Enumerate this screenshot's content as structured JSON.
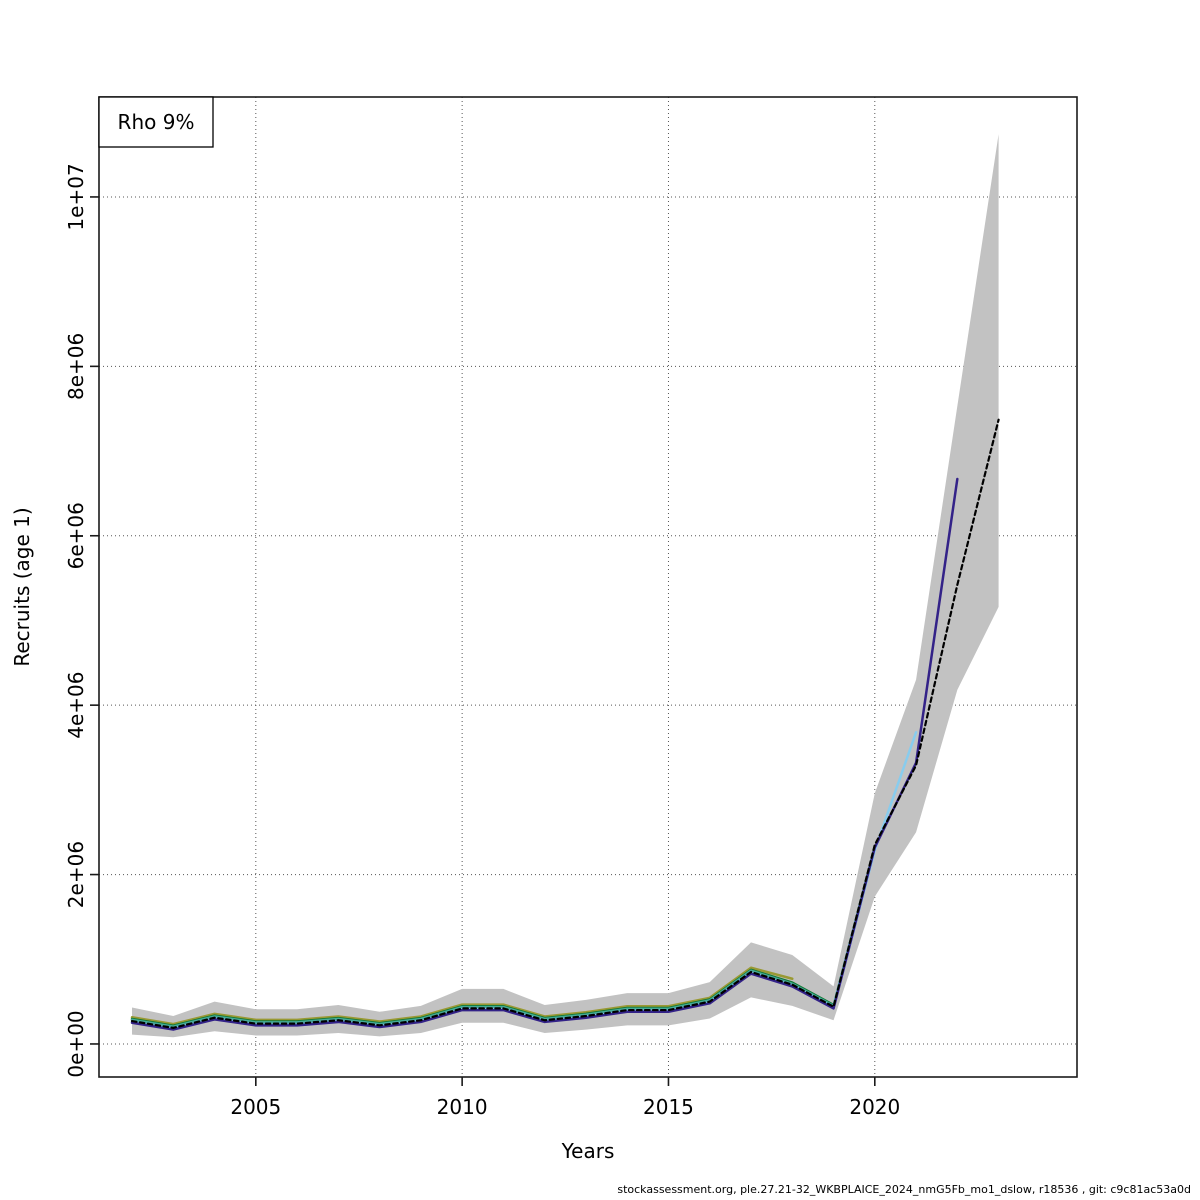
{
  "footer": {
    "text": "stockassessment.org, ple.27.21-32_WKBPLAICE_2024_nmG5Fb_mo1_dslow, r18536 , git: c9c81ac53a0d"
  },
  "chart_data": {
    "type": "line",
    "title": "",
    "xlabel": "Years",
    "ylabel": "Recruits (age 1)",
    "legend": {
      "label": "Rho 9%",
      "position": "topleft"
    },
    "grid": true,
    "xlim": [
      2001.2,
      2024.9
    ],
    "ylim": [
      -390000,
      11180000
    ],
    "x_ticks": {
      "values": [
        2005,
        2010,
        2015,
        2020
      ],
      "labels": [
        "2005",
        "2010",
        "2015",
        "2020"
      ]
    },
    "y_ticks": {
      "values": [
        0,
        2000000,
        4000000,
        6000000,
        8000000,
        10000000
      ],
      "labels": [
        "0e+00",
        "2e+06",
        "4e+06",
        "6e+06",
        "8e+06",
        "1e+07"
      ]
    },
    "years": [
      2002,
      2003,
      2004,
      2005,
      2006,
      2007,
      2008,
      2009,
      2010,
      2011,
      2012,
      2013,
      2014,
      2015,
      2016,
      2017,
      2018,
      2019,
      2020,
      2021,
      2022,
      2023
    ],
    "band": {
      "name": "base-run-confidence-band",
      "color": "#c2c2c2",
      "lower": [
        110000,
        80000,
        150000,
        100000,
        100000,
        130000,
        90000,
        130000,
        250000,
        250000,
        130000,
        170000,
        220000,
        220000,
        300000,
        550000,
        450000,
        280000,
        1740000,
        2500000,
        4180000,
        5160000
      ],
      "upper": [
        430000,
        330000,
        500000,
        410000,
        410000,
        460000,
        380000,
        450000,
        650000,
        650000,
        460000,
        520000,
        600000,
        600000,
        730000,
        1200000,
        1050000,
        680000,
        2960000,
        4300000,
        7530000,
        10740000
      ]
    },
    "series": [
      {
        "name": "retro-peel-2018",
        "color": "#999933",
        "dashed": false,
        "values": [
          315000,
          235000,
          355000,
          285000,
          285000,
          325000,
          265000,
          325000,
          465000,
          465000,
          325000,
          375000,
          445000,
          445000,
          545000,
          900000,
          770000
        ]
      },
      {
        "name": "retro-peel-2019",
        "color": "#117733",
        "dashed": false,
        "values": [
          295000,
          215000,
          335000,
          265000,
          265000,
          305000,
          245000,
          305000,
          445000,
          445000,
          305000,
          355000,
          425000,
          425000,
          525000,
          875000,
          725000,
          460000
        ]
      },
      {
        "name": "retro-peel-2020",
        "color": "#44AA99",
        "dashed": false,
        "values": [
          285000,
          205000,
          325000,
          255000,
          255000,
          295000,
          235000,
          295000,
          435000,
          435000,
          295000,
          345000,
          415000,
          415000,
          515000,
          865000,
          710000,
          450000,
          2330000
        ]
      },
      {
        "name": "retro-peel-2021",
        "color": "#88CCEE",
        "dashed": false,
        "values": [
          260000,
          180000,
          300000,
          230000,
          230000,
          270000,
          210000,
          270000,
          410000,
          410000,
          270000,
          320000,
          390000,
          390000,
          490000,
          840000,
          690000,
          430000,
          2290000,
          3680000
        ]
      },
      {
        "name": "retro-peel-2022",
        "color": "#332288",
        "dashed": false,
        "values": [
          250000,
          170000,
          290000,
          220000,
          220000,
          260000,
          200000,
          260000,
          400000,
          400000,
          260000,
          310000,
          380000,
          380000,
          480000,
          830000,
          680000,
          420000,
          2320000,
          3320000,
          6670000
        ]
      },
      {
        "name": "base-run-2023",
        "color": "#000000",
        "dashed": true,
        "values": [
          270000,
          190000,
          310000,
          240000,
          240000,
          280000,
          220000,
          280000,
          420000,
          420000,
          280000,
          330000,
          400000,
          400000,
          500000,
          850000,
          700000,
          440000,
          2350000,
          3290000,
          5420000,
          7370000
        ]
      }
    ]
  }
}
